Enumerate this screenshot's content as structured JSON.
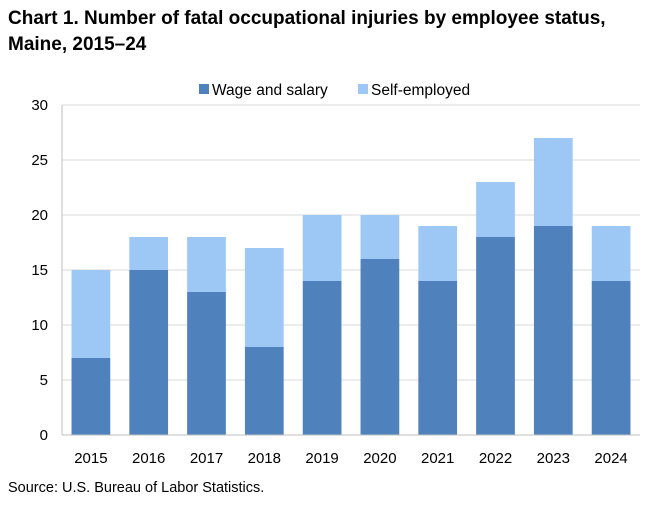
{
  "chart_data": {
    "type": "bar",
    "stacked": true,
    "title": "Chart 1. Number of fatal occupational injuries by employee status, Maine, 2015–24",
    "categories": [
      "2015",
      "2016",
      "2017",
      "2018",
      "2019",
      "2020",
      "2021",
      "2022",
      "2023",
      "2024"
    ],
    "series": [
      {
        "name": "Wage and salary",
        "color": "#4f81bd",
        "values": [
          7,
          15,
          13,
          8,
          14,
          16,
          14,
          18,
          19,
          14
        ]
      },
      {
        "name": "Self-employed",
        "color": "#9dc8f5",
        "values": [
          8,
          3,
          5,
          9,
          6,
          4,
          5,
          5,
          8,
          5
        ]
      }
    ],
    "ylim": [
      0,
      30
    ],
    "yticks": [
      0,
      5,
      10,
      15,
      20,
      25,
      30
    ],
    "grid": true,
    "legend_position": "top-center",
    "source": "Source: U.S. Bureau of Labor Statistics."
  }
}
